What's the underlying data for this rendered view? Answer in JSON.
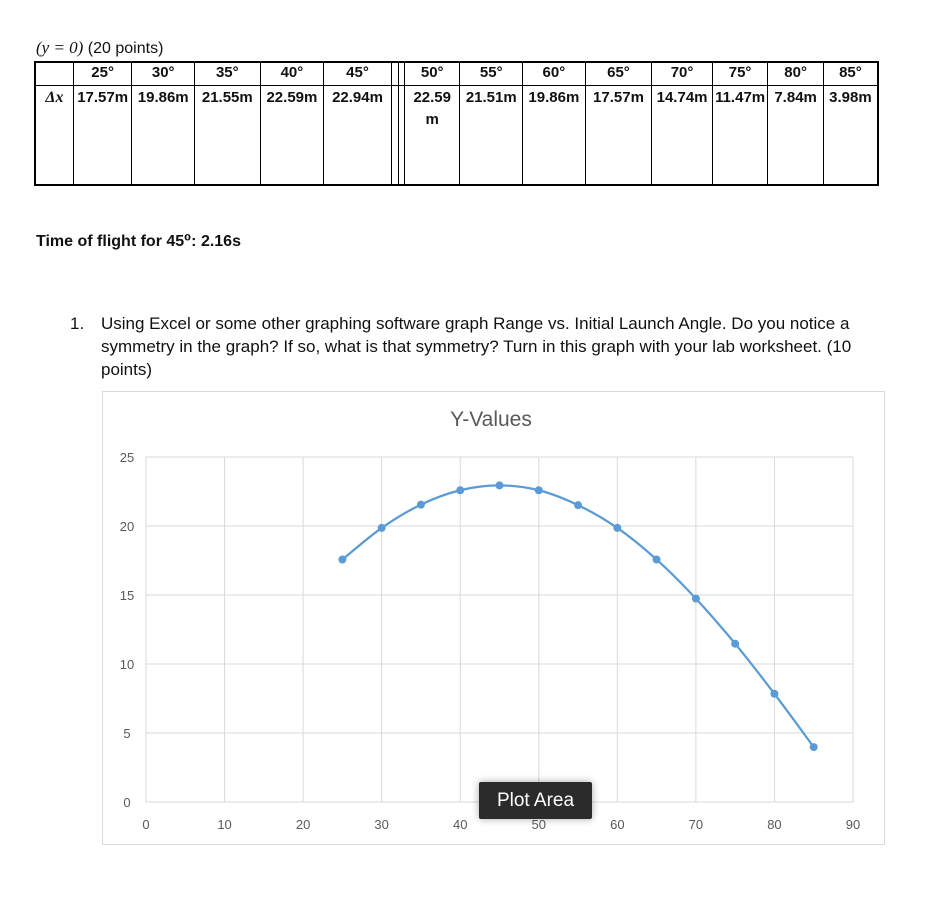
{
  "header": {
    "math": "(y = 0)",
    "points": "(20 points)"
  },
  "table": {
    "angles": [
      "25°",
      "30°",
      "35°",
      "40°",
      "45°",
      "50°",
      "55°",
      "60°",
      "65°",
      "70°",
      "75°",
      "80°",
      "85°"
    ],
    "row_label": "Δx",
    "ranges": [
      "17.57m",
      "19.86m",
      "21.55m",
      "22.59m",
      "22.94m",
      "22.59m",
      "21.51m",
      "19.86m",
      "17.57m",
      "14.74m",
      "11.47m",
      "7.84m",
      "3.98m"
    ]
  },
  "time_of_flight": "Time of flight for 45⁰: 2.16s",
  "question": {
    "number": "1.",
    "text": "Using Excel or some other graphing software graph Range vs. Initial Launch Angle. Do you notice a symmetry in the graph? If so, what is that symmetry? Turn in this graph with your lab worksheet. (10 points)"
  },
  "tooltip": "Plot Area",
  "colors": {
    "series": "#5b9bd5",
    "grid": "#d9d9d9",
    "axis_text": "#595959"
  },
  "chart_data": {
    "type": "scatter",
    "title": "Y-Values",
    "xlabel": "",
    "ylabel": "",
    "xlim": [
      0,
      90
    ],
    "ylim": [
      0,
      25
    ],
    "x_ticks": [
      0,
      10,
      20,
      30,
      40,
      50,
      60,
      70,
      80,
      90
    ],
    "y_ticks": [
      0,
      5,
      10,
      15,
      20,
      25
    ],
    "grid": true,
    "smooth_line": true,
    "series": [
      {
        "x": [
          25,
          30,
          35,
          40,
          45,
          50,
          55,
          60,
          65,
          70,
          75,
          80,
          85
        ],
        "y": [
          17.57,
          19.86,
          21.55,
          22.59,
          22.94,
          22.59,
          21.51,
          19.86,
          17.57,
          14.74,
          11.47,
          7.84,
          3.98
        ]
      }
    ]
  }
}
